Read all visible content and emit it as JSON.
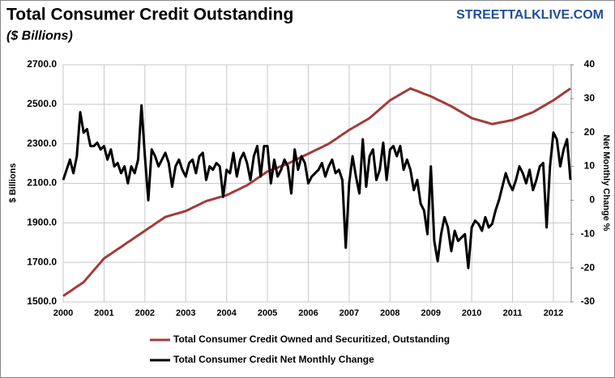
{
  "chart_data": {
    "type": "line",
    "title": "Total Consumer Credit Outstanding",
    "subtitle": "($ Billions)",
    "watermark": "STREETTALKLIVE.COM",
    "ylabel": "$ Billions",
    "y2label": "Net Monthly Change %",
    "categories": [
      "2000",
      null,
      null,
      null,
      null,
      null,
      null,
      null,
      null,
      null,
      null,
      null,
      "2001",
      null,
      null,
      null,
      null,
      null,
      null,
      null,
      null,
      null,
      null,
      null,
      "2002",
      null,
      null,
      null,
      null,
      null,
      null,
      null,
      null,
      null,
      null,
      null,
      "2003",
      null,
      null,
      null,
      null,
      null,
      null,
      null,
      null,
      null,
      null,
      null,
      "2004",
      null,
      null,
      null,
      null,
      null,
      null,
      null,
      null,
      null,
      null,
      null,
      "2005",
      null,
      null,
      null,
      null,
      null,
      null,
      null,
      null,
      null,
      null,
      null,
      "2006",
      null,
      null,
      null,
      null,
      null,
      null,
      null,
      null,
      null,
      null,
      null,
      "2007",
      null,
      null,
      null,
      null,
      null,
      null,
      null,
      null,
      null,
      null,
      null,
      "2008",
      null,
      null,
      null,
      null,
      null,
      null,
      null,
      null,
      null,
      null,
      null,
      "2009",
      null,
      null,
      null,
      null,
      null,
      null,
      null,
      null,
      null,
      null,
      null,
      "2010",
      null,
      null,
      null,
      null,
      null,
      null,
      null,
      null,
      null,
      null,
      null,
      "2011",
      null,
      null,
      null,
      null,
      null,
      null,
      null,
      null,
      null,
      null,
      null,
      "2012",
      null,
      null,
      null,
      null,
      null
    ],
    "series": [
      {
        "name": "Total Consumer Credit Owned and Securitized, Outstanding",
        "color": "#a33b3b",
        "axis": "y",
        "values": [
          1530,
          1542,
          1553,
          1565,
          1577,
          1588,
          1600,
          1620,
          1640,
          1660,
          1680,
          1700,
          1720,
          1732,
          1743,
          1755,
          1767,
          1778,
          1790,
          1802,
          1813,
          1825,
          1837,
          1848,
          1860,
          1872,
          1883,
          1895,
          1907,
          1918,
          1930,
          1935,
          1940,
          1945,
          1950,
          1955,
          1960,
          1968,
          1977,
          1985,
          1993,
          2002,
          2010,
          2015,
          2020,
          2025,
          2030,
          2035,
          2040,
          2048,
          2057,
          2065,
          2073,
          2082,
          2090,
          2102,
          2113,
          2125,
          2137,
          2148,
          2160,
          2167,
          2173,
          2180,
          2187,
          2193,
          2200,
          2208,
          2217,
          2225,
          2233,
          2242,
          2250,
          2258,
          2267,
          2275,
          2283,
          2292,
          2300,
          2312,
          2323,
          2335,
          2347,
          2358,
          2370,
          2380,
          2390,
          2400,
          2410,
          2420,
          2430,
          2445,
          2460,
          2475,
          2490,
          2505,
          2520,
          2530,
          2540,
          2550,
          2560,
          2570,
          2580,
          2573,
          2567,
          2560,
          2553,
          2547,
          2540,
          2532,
          2523,
          2515,
          2507,
          2498,
          2490,
          2480,
          2470,
          2460,
          2450,
          2440,
          2430,
          2425,
          2420,
          2415,
          2410,
          2405,
          2400,
          2403,
          2407,
          2410,
          2413,
          2417,
          2420,
          2427,
          2433,
          2440,
          2447,
          2453,
          2460,
          2470,
          2480,
          2490,
          2500,
          2510,
          2520,
          2532,
          2544,
          2556,
          2568,
          2580
        ]
      },
      {
        "name": "Total Consumer Credit Net Monthly Change",
        "color": "#000000",
        "axis": "y2",
        "values": [
          6,
          9,
          12,
          8,
          13,
          26,
          20,
          21,
          16,
          16,
          17,
          15,
          16,
          12,
          15,
          10,
          11,
          8,
          10,
          5,
          10,
          8,
          12,
          28,
          13,
          0,
          15,
          13,
          10,
          12,
          14,
          11,
          4,
          10,
          12,
          9,
          7,
          11,
          12,
          8,
          13,
          14,
          6,
          10,
          9,
          11,
          10,
          1,
          9,
          8,
          14,
          7,
          12,
          14,
          11,
          6,
          13,
          16,
          7,
          16,
          16,
          5,
          12,
          7,
          9,
          12,
          10,
          2,
          15,
          9,
          13,
          11,
          5,
          7,
          8,
          9,
          11,
          7,
          10,
          12,
          8,
          9,
          6,
          -14,
          5,
          13,
          7,
          2,
          18,
          4,
          13,
          15,
          6,
          9,
          17,
          6,
          15,
          16,
          13,
          16,
          9,
          12,
          9,
          3,
          6,
          -1,
          -3,
          -10,
          10,
          -12,
          -18,
          -10,
          -5,
          -8,
          -15,
          -9,
          -12,
          -11,
          -10,
          -20,
          -8,
          -6,
          -7,
          -9,
          -5,
          -8,
          -7,
          -3,
          0,
          4,
          8,
          5,
          3,
          6,
          10,
          8,
          5,
          9,
          3,
          6,
          10,
          11,
          -8,
          10,
          20,
          18,
          10,
          15,
          18,
          6
        ]
      }
    ],
    "ylim": [
      1500,
      2700
    ],
    "yticks": [
      {
        "value": 1500,
        "label": "1500.0"
      },
      {
        "value": 1700,
        "label": "1700.0"
      },
      {
        "value": 1900,
        "label": "1900.0"
      },
      {
        "value": 2100,
        "label": "2100.0"
      },
      {
        "value": 2300,
        "label": "2300.0"
      },
      {
        "value": 2500,
        "label": "2500.0"
      },
      {
        "value": 2700,
        "label": "2700.0"
      }
    ],
    "y2lim": [
      -30,
      40
    ],
    "y2ticks": [
      -30,
      -20,
      -10,
      0,
      10,
      20,
      30,
      40
    ],
    "grid": true,
    "legend": "bottom"
  }
}
